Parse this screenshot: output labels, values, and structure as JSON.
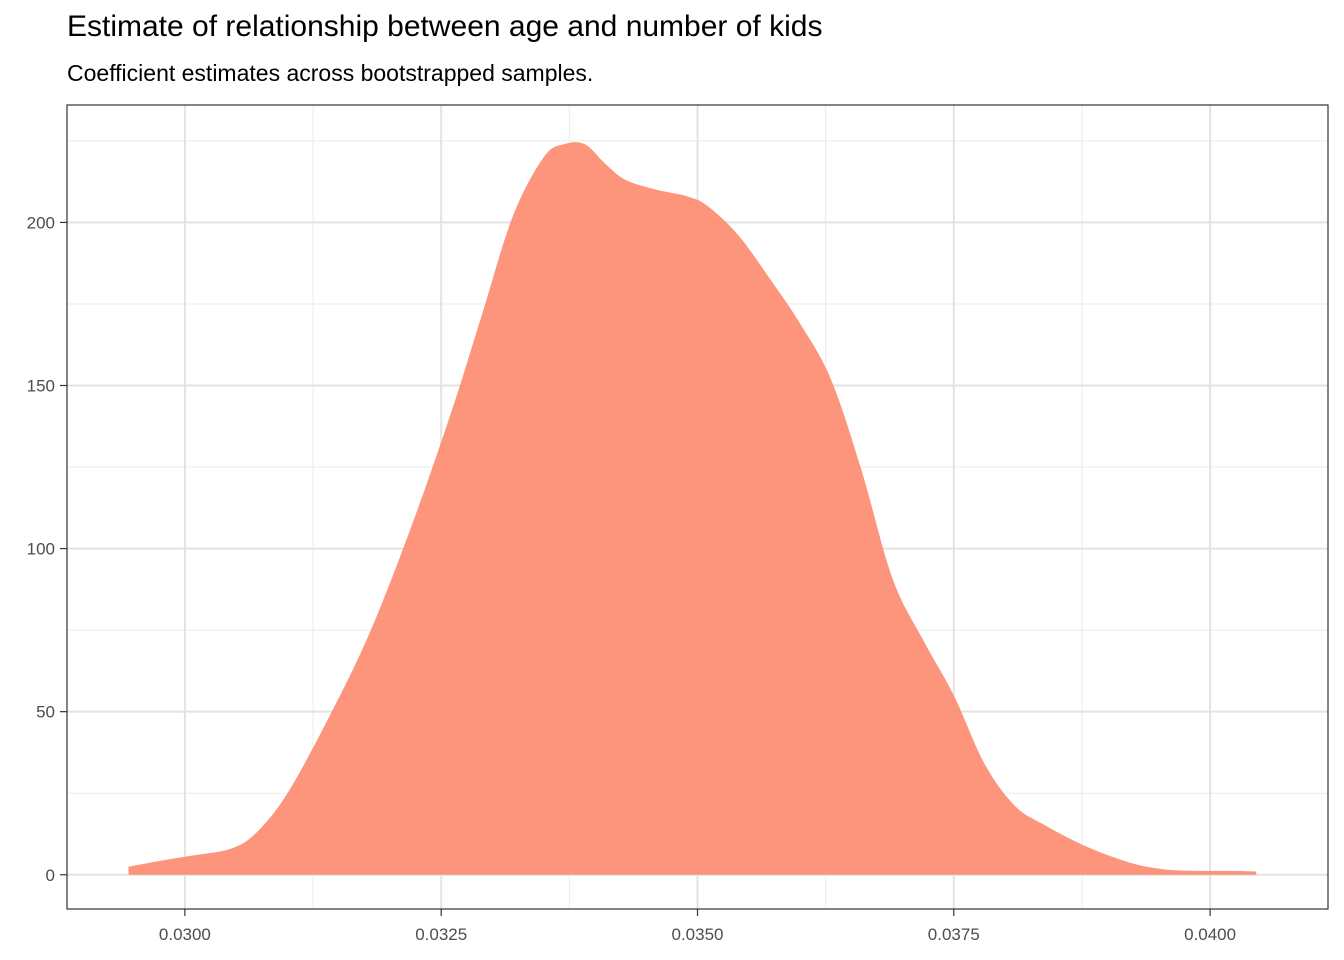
{
  "chart_data": {
    "type": "area",
    "title": "Estimate of relationship between age and number of kids",
    "subtitle": "Coefficient estimates across bootstrapped samples.",
    "xlabel": "",
    "ylabel": "",
    "xlim": [
      0.02885,
      0.04115
    ],
    "ylim": [
      -10.5,
      236
    ],
    "x_ticks": [
      0.03,
      0.0325,
      0.035,
      0.0375,
      0.04
    ],
    "x_tick_labels": [
      "0.0300",
      "0.0325",
      "0.0350",
      "0.0375",
      "0.0400"
    ],
    "y_ticks": [
      0,
      50,
      100,
      150,
      200
    ],
    "y_tick_labels": [
      "0",
      "50",
      "100",
      "150",
      "200"
    ],
    "grid": true,
    "fill_color": "#fc8d72",
    "series": [
      {
        "x": [
          0.02945,
          0.0298,
          0.0301,
          0.03045,
          0.0307,
          0.031,
          0.0314,
          0.0318,
          0.0322,
          0.0326,
          0.0329,
          0.0332,
          0.0335,
          0.0337,
          0.0339,
          0.0341,
          0.0343,
          0.0346,
          0.0349,
          0.0351,
          0.0354,
          0.0357,
          0.036,
          0.0363,
          0.0366,
          0.0369,
          0.0372,
          0.0375,
          0.0378,
          0.0381,
          0.0384,
          0.0387,
          0.039,
          0.0393,
          0.0396,
          0.0399,
          0.0402,
          0.04045
        ],
        "values": [
          2.5,
          4.5,
          6,
          8,
          13,
          25,
          48,
          74,
          106,
          142,
          172,
          202,
          220,
          224,
          224,
          218,
          213,
          210,
          208,
          205,
          196,
          183,
          169,
          152,
          124,
          91,
          72,
          55,
          34,
          21,
          15,
          10,
          6,
          3,
          1.5,
          1.2,
          1.2,
          1
        ]
      }
    ]
  }
}
